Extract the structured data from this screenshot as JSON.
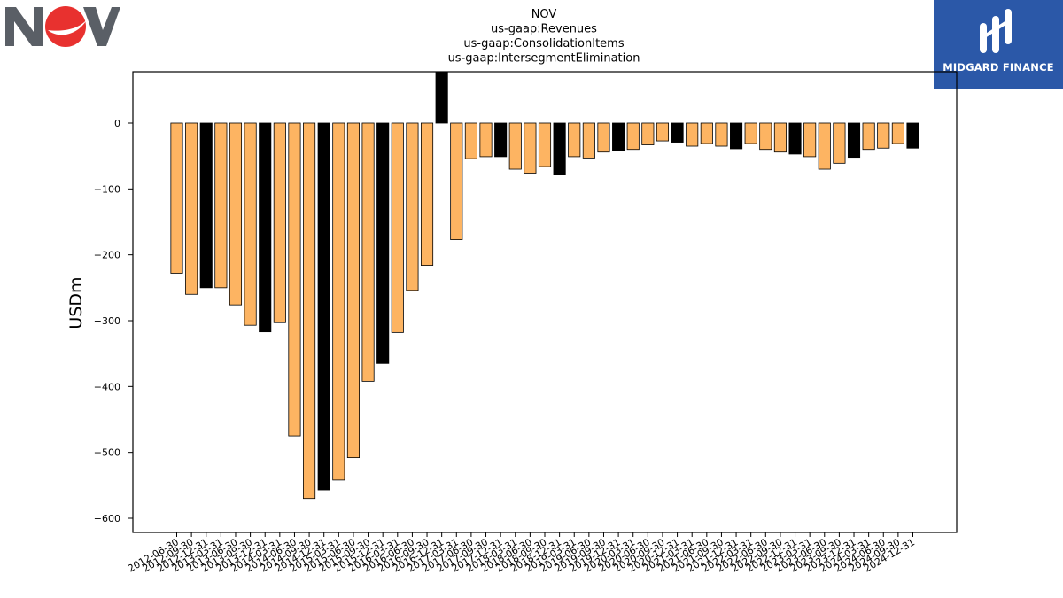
{
  "brand": {
    "left_logo_name": "nov-logo",
    "right_logo_text": "MIDGARD FINANCE",
    "right_logo_color": "#2b58a8"
  },
  "chart_data": {
    "type": "bar",
    "title_lines": [
      "NOV",
      "us-gaap:Revenues",
      "us-gaap:ConsolidationItems",
      "us-gaap:IntersegmentElimination"
    ],
    "xlabel": "",
    "ylabel": "USDm",
    "ylim": [
      -620,
      78
    ],
    "yticks": [
      0,
      -100,
      -200,
      -300,
      -400,
      -500,
      -600
    ],
    "ytick_labels": [
      "0",
      "−100",
      "−200",
      "−300",
      "−400",
      "−500",
      "−600"
    ],
    "grid": false,
    "legend": "none",
    "colors": {
      "quarter": "#fdb462",
      "annual": "#000000",
      "edge": "#000000"
    },
    "categories": [
      "2012-06-30",
      "2012-09-30",
      "2012-12-31",
      "2013-03-31",
      "2013-06-30",
      "2013-09-30",
      "2013-12-31",
      "2014-03-31",
      "2014-06-30",
      "2014-09-30",
      "2014-12-31",
      "2015-03-31",
      "2015-06-30",
      "2015-09-30",
      "2015-12-31",
      "2016-03-31",
      "2016-06-30",
      "2016-09-30",
      "2016-12-31",
      "2017-03-31",
      "2017-06-30",
      "2017-09-30",
      "2017-12-31",
      "2018-03-31",
      "2018-06-30",
      "2018-09-30",
      "2018-12-31",
      "2019-03-31",
      "2019-06-30",
      "2019-09-30",
      "2019-12-31",
      "2020-03-31",
      "2020-06-30",
      "2020-09-30",
      "2020-12-31",
      "2021-03-31",
      "2021-06-30",
      "2021-09-30",
      "2021-12-31",
      "2022-03-31",
      "2022-06-30",
      "2022-09-30",
      "2022-12-31",
      "2023-03-31",
      "2023-06-30",
      "2023-09-30",
      "2023-12-31",
      "2024-03-31",
      "2024-06-30",
      "2024-09-30",
      "2024-12-31"
    ],
    "values": [
      -228,
      -260,
      -250,
      -250,
      -276,
      -307,
      -317,
      -303,
      -475,
      -570,
      -557,
      -542,
      -508,
      -392,
      -365,
      -318,
      -254,
      -216,
      100,
      -177,
      -54,
      -51,
      -51,
      -70,
      -76,
      -66,
      -78,
      -51,
      -53,
      -44,
      -42,
      -40,
      -33,
      -27,
      -29,
      -35,
      -31,
      -35,
      -39,
      -31,
      -40,
      -44,
      -47,
      -51,
      -70,
      -61,
      -52,
      -40,
      -38,
      -31,
      -38
    ],
    "annual_flags": [
      0,
      0,
      1,
      0,
      0,
      0,
      1,
      0,
      0,
      0,
      1,
      0,
      0,
      0,
      1,
      0,
      0,
      0,
      1,
      0,
      0,
      0,
      1,
      0,
      0,
      0,
      1,
      0,
      0,
      0,
      1,
      0,
      0,
      0,
      1,
      0,
      0,
      0,
      1,
      0,
      0,
      0,
      1,
      0,
      0,
      0,
      1,
      0,
      0,
      0,
      1
    ]
  }
}
